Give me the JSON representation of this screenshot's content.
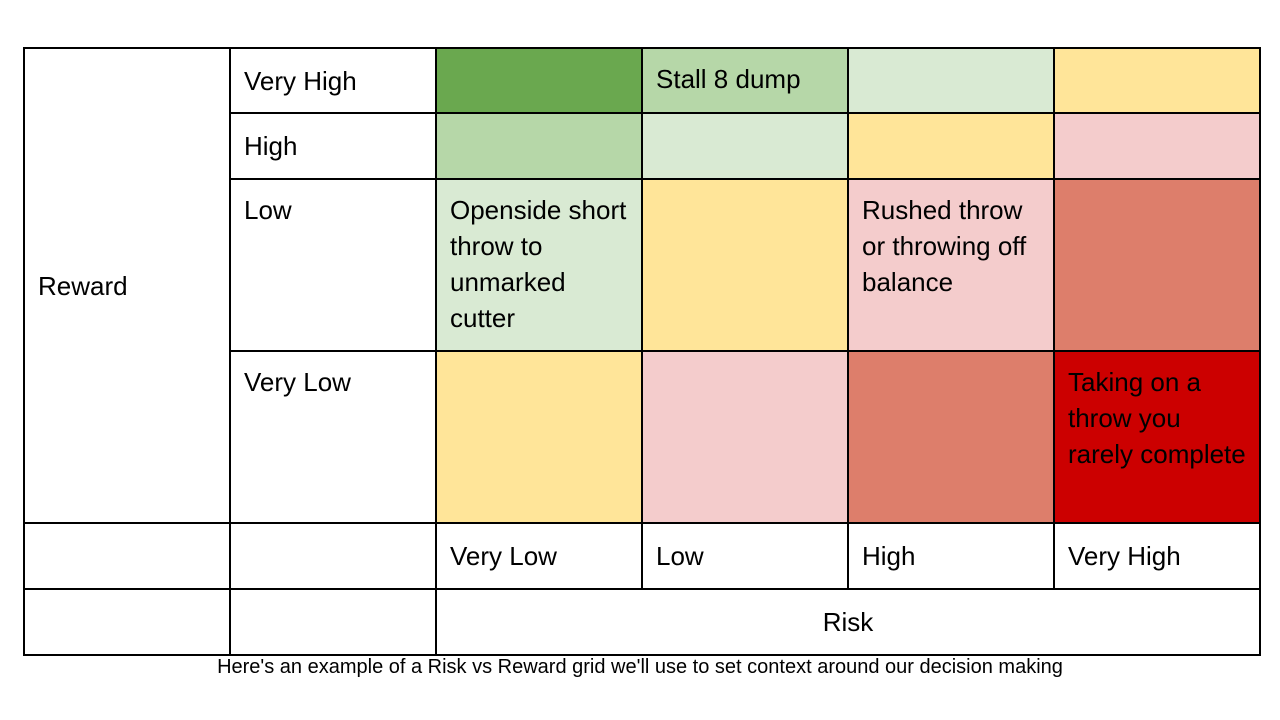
{
  "grid": {
    "y_axis_label": "Reward",
    "x_axis_label": "Risk",
    "reward_levels": [
      "Very High",
      "High",
      "Low",
      "Very Low"
    ],
    "risk_levels": [
      "Very Low",
      "Low",
      "High",
      "Very High"
    ],
    "rows": [
      {
        "cells": [
          {
            "text": "",
            "color": "#6aa84f"
          },
          {
            "text": "Stall 8 dump",
            "color": "#b6d7a8"
          },
          {
            "text": "",
            "color": "#d9ead3"
          },
          {
            "text": "",
            "color": "#ffe599"
          }
        ]
      },
      {
        "cells": [
          {
            "text": "",
            "color": "#b6d7a8"
          },
          {
            "text": "",
            "color": "#d9ead3"
          },
          {
            "text": "",
            "color": "#ffe599"
          },
          {
            "text": "",
            "color": "#f4cccc"
          }
        ]
      },
      {
        "cells": [
          {
            "text": "Openside short throw to unmarked cutter",
            "color": "#d9ead3"
          },
          {
            "text": "",
            "color": "#ffe599"
          },
          {
            "text": "Rushed throw or throwing off balance",
            "color": "#f4cccc"
          },
          {
            "text": "",
            "color": "#dd7e6b"
          }
        ]
      },
      {
        "cells": [
          {
            "text": "",
            "color": "#ffe599"
          },
          {
            "text": "",
            "color": "#f4cccc"
          },
          {
            "text": "",
            "color": "#dd7e6b"
          },
          {
            "text": "Taking on a throw you rarely complete",
            "color": "#cc0000"
          }
        ]
      }
    ]
  },
  "caption": "Here's an example of a Risk vs Reward grid we'll use to set context around our decision making"
}
